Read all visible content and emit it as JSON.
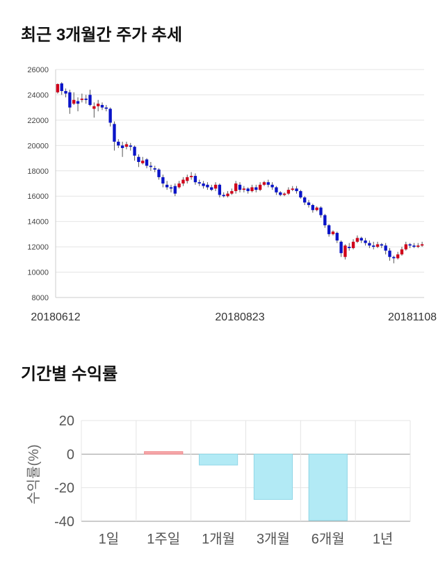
{
  "section1": {
    "title": "최근 3개월간 주가 추세"
  },
  "section2": {
    "title": "기간별 수익률"
  },
  "chart_data": [
    {
      "type": "candlestick",
      "title": "",
      "ylim": [
        8000,
        26000
      ],
      "yticks": [
        8000,
        10000,
        12000,
        14000,
        16000,
        18000,
        20000,
        22000,
        24000,
        26000
      ],
      "ytick_labels": [
        "8000",
        "10000",
        "12000",
        "14000",
        "16000",
        "18000",
        "20000",
        "22000",
        "24000",
        "26000"
      ],
      "xtick_labels": [
        "20180612",
        "20180823",
        "20181108"
      ],
      "up_color": "#d0021b",
      "down_color": "#0a14c8",
      "grid": true,
      "candles": [
        [
          24200,
          24850,
          24900,
          24100
        ],
        [
          24900,
          24300,
          25000,
          24000
        ],
        [
          24300,
          24100,
          24500,
          23800
        ],
        [
          24200,
          23000,
          24400,
          22500
        ],
        [
          23300,
          23600,
          24200,
          23200
        ],
        [
          23500,
          23300,
          23800,
          22700
        ],
        [
          23600,
          23700,
          24100,
          23400
        ],
        [
          23700,
          23600,
          24000,
          23300
        ],
        [
          24000,
          23200,
          24400,
          23100
        ],
        [
          22900,
          23100,
          23400,
          22200
        ],
        [
          23100,
          23300,
          23600,
          22700
        ],
        [
          23200,
          23000,
          23400,
          22800
        ],
        [
          23000,
          22900,
          23200,
          22700
        ],
        [
          22900,
          21800,
          23000,
          21500
        ],
        [
          21700,
          20300,
          21900,
          19600
        ],
        [
          20300,
          20000,
          20500,
          19800
        ],
        [
          20000,
          19800,
          20300,
          19100
        ],
        [
          19900,
          20100,
          20300,
          19700
        ],
        [
          20000,
          19900,
          20200,
          19600
        ],
        [
          19900,
          19200,
          20000,
          18800
        ],
        [
          19100,
          18700,
          19300,
          18300
        ],
        [
          18600,
          18800,
          19100,
          18500
        ],
        [
          18900,
          18400,
          19000,
          18200
        ],
        [
          18400,
          18300,
          18700,
          18000
        ],
        [
          18200,
          18100,
          18400,
          17900
        ],
        [
          18100,
          17500,
          18200,
          17300
        ],
        [
          17500,
          17000,
          17700,
          16700
        ],
        [
          16900,
          16700,
          17200,
          16500
        ],
        [
          16700,
          16600,
          16900,
          16300
        ],
        [
          16800,
          16200,
          17000,
          16000
        ],
        [
          16700,
          17000,
          17200,
          16600
        ],
        [
          17000,
          17300,
          17500,
          16800
        ],
        [
          17200,
          17500,
          17700,
          17000
        ],
        [
          17500,
          17600,
          17900,
          17300
        ],
        [
          17600,
          17100,
          17800,
          16900
        ],
        [
          17100,
          17000,
          17300,
          16800
        ],
        [
          17000,
          16800,
          17200,
          16600
        ],
        [
          16900,
          16700,
          17100,
          16500
        ],
        [
          16700,
          16500,
          16900,
          16400
        ],
        [
          16600,
          16900,
          17100,
          16400
        ],
        [
          16900,
          16100,
          17000,
          15900
        ],
        [
          16100,
          16000,
          16300,
          15900
        ],
        [
          16000,
          16200,
          16400,
          15900
        ],
        [
          16200,
          16400,
          16600,
          16100
        ],
        [
          16400,
          17000,
          17200,
          16200
        ],
        [
          16900,
          16500,
          17100,
          16300
        ],
        [
          16500,
          16600,
          16800,
          16300
        ],
        [
          16600,
          16400,
          16700,
          16200
        ],
        [
          16400,
          16700,
          16900,
          16300
        ],
        [
          16700,
          16500,
          16900,
          16300
        ],
        [
          16500,
          16900,
          17100,
          16400
        ],
        [
          16900,
          17100,
          17200,
          16800
        ],
        [
          17100,
          16900,
          17300,
          16700
        ],
        [
          16900,
          16700,
          17100,
          16500
        ],
        [
          16700,
          16300,
          16800,
          16100
        ],
        [
          16300,
          16100,
          16400,
          16000
        ],
        [
          16100,
          16200,
          16300,
          16000
        ],
        [
          16200,
          16500,
          16700,
          16100
        ],
        [
          16500,
          16600,
          16800,
          16400
        ],
        [
          16600,
          16400,
          16800,
          16200
        ],
        [
          16400,
          15900,
          16500,
          15800
        ],
        [
          15900,
          15500,
          16000,
          15300
        ],
        [
          15500,
          15300,
          15700,
          15100
        ],
        [
          15300,
          14900,
          15400,
          14700
        ],
        [
          14900,
          15100,
          15200,
          14800
        ],
        [
          15100,
          14500,
          15200,
          14300
        ],
        [
          14500,
          13700,
          14600,
          13500
        ],
        [
          13700,
          13000,
          13800,
          12800
        ],
        [
          13000,
          13200,
          13300,
          12900
        ],
        [
          13100,
          12500,
          13200,
          12300
        ],
        [
          12400,
          11500,
          12500,
          11200
        ],
        [
          11200,
          12100,
          12200,
          11000
        ],
        [
          12000,
          11900,
          12300,
          11700
        ],
        [
          11900,
          12400,
          12600,
          11800
        ],
        [
          12400,
          12700,
          12900,
          12300
        ],
        [
          12700,
          12500,
          12800,
          12300
        ],
        [
          12500,
          12300,
          12700,
          12100
        ],
        [
          12300,
          12100,
          12500,
          11900
        ],
        [
          12100,
          12000,
          12400,
          11800
        ],
        [
          12000,
          12200,
          12400,
          11900
        ],
        [
          12200,
          12100,
          12300,
          11900
        ],
        [
          12100,
          11700,
          12300,
          11400
        ],
        [
          11700,
          11200,
          11900,
          10900
        ],
        [
          11200,
          11100,
          11300,
          10700
        ],
        [
          11100,
          11400,
          11600,
          11000
        ],
        [
          11400,
          11800,
          12000,
          11300
        ],
        [
          11800,
          12200,
          12400,
          11700
        ],
        [
          12200,
          12100,
          12300,
          11900
        ],
        [
          12100,
          12000,
          12300,
          11900
        ],
        [
          12000,
          12100,
          12300,
          11900
        ],
        [
          12100,
          12200,
          12400,
          12000
        ]
      ]
    },
    {
      "type": "bar",
      "categories": [
        "1일",
        "1주일",
        "1개월",
        "3개월",
        "6개월",
        "1년"
      ],
      "values": [
        0,
        1.5,
        -6.5,
        -27,
        -39.5,
        0
      ],
      "ylabel": "수익률(%)",
      "ylim": [
        -40,
        20
      ],
      "yticks": [
        20,
        0,
        -20,
        -40
      ],
      "ytick_labels": [
        "20",
        "0",
        "-20",
        "-40"
      ],
      "positive_color": "#f7a8aa",
      "negative_color": "#b2eaf5",
      "grid": true
    }
  ]
}
